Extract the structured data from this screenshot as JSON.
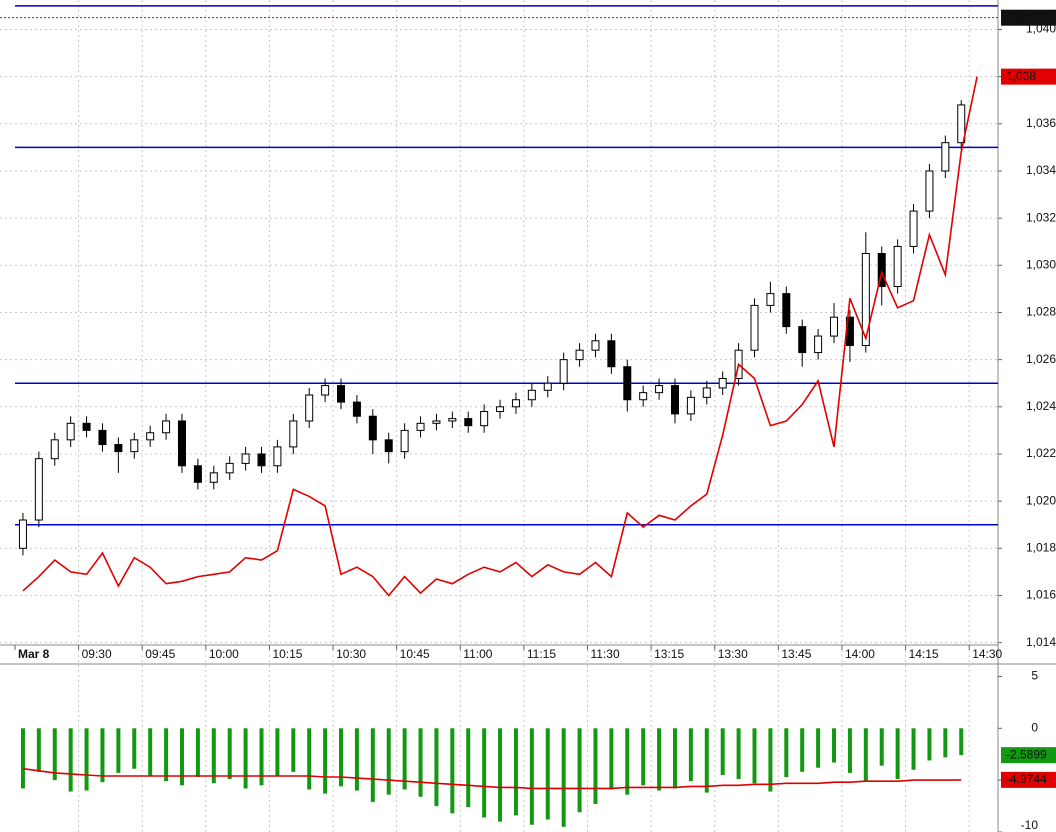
{
  "chart_data": [
    {
      "type": "candlestick",
      "xlim": [
        0,
        62
      ],
      "xticks": [
        {
          "value": 0,
          "label": "Mar 8"
        },
        {
          "value": 4,
          "label": "09:30"
        },
        {
          "value": 8,
          "label": "09:45"
        },
        {
          "value": 12,
          "label": "10:00"
        },
        {
          "value": 16,
          "label": "10:15"
        },
        {
          "value": 20,
          "label": "10:30"
        },
        {
          "value": 24,
          "label": "10:45"
        },
        {
          "value": 28,
          "label": "11:00"
        },
        {
          "value": 32,
          "label": "11:15"
        },
        {
          "value": 36,
          "label": "11:30"
        },
        {
          "value": 40,
          "label": "13:15"
        },
        {
          "value": 44,
          "label": "13:30"
        },
        {
          "value": 48,
          "label": "13:45"
        },
        {
          "value": 52,
          "label": "14:00"
        },
        {
          "value": 56,
          "label": "14:15"
        },
        {
          "value": 60,
          "label": "14:30"
        }
      ],
      "ylim": [
        1013.9,
        1041.25
      ],
      "yticks": [
        {
          "value": 1014,
          "label": "1,014"
        },
        {
          "value": 1016,
          "label": "1,016"
        },
        {
          "value": 1018,
          "label": "1,018"
        },
        {
          "value": 1020,
          "label": "1,020"
        },
        {
          "value": 1022,
          "label": "1,022"
        },
        {
          "value": 1024,
          "label": "1,024"
        },
        {
          "value": 1026,
          "label": "1,026"
        },
        {
          "value": 1028,
          "label": "1,028"
        },
        {
          "value": 1030,
          "label": "1,030"
        },
        {
          "value": 1032,
          "label": "1,032"
        },
        {
          "value": 1034,
          "label": "1,034"
        },
        {
          "value": 1036,
          "label": "1,036"
        },
        {
          "value": 1038,
          "label": "1,038"
        },
        {
          "value": 1040,
          "label": "1,040"
        }
      ],
      "grid": true,
      "open": [
        1018.0,
        1019.2,
        1021.8,
        1022.6,
        1023.3,
        1023.0,
        1022.4,
        1022.1,
        1022.6,
        1022.9,
        1023.4,
        1021.5,
        1020.8,
        1021.2,
        1021.6,
        1022.0,
        1021.5,
        1022.3,
        1023.4,
        1024.5,
        1024.9,
        1024.2,
        1023.6,
        1022.6,
        1022.1,
        1023.0,
        1023.3,
        1023.4,
        1023.5,
        1023.2,
        1023.8,
        1024.0,
        1024.3,
        1024.7,
        1025.0,
        1026.0,
        1026.4,
        1026.8,
        1025.7,
        1024.3,
        1024.6,
        1024.9,
        1023.7,
        1024.4,
        1024.8,
        1025.2,
        1026.4,
        1028.3,
        1028.8,
        1027.4,
        1026.3,
        1027.0,
        1027.8,
        1026.6,
        1030.5,
        1029.1,
        1030.8,
        1032.3,
        1034.0,
        1035.2
      ],
      "high": [
        1019.5,
        1022.1,
        1022.9,
        1023.6,
        1023.6,
        1023.3,
        1022.7,
        1022.9,
        1023.2,
        1023.7,
        1023.7,
        1021.8,
        1021.5,
        1021.9,
        1022.3,
        1022.3,
        1022.6,
        1023.7,
        1024.8,
        1025.2,
        1025.2,
        1024.5,
        1023.9,
        1022.9,
        1023.3,
        1023.6,
        1023.7,
        1023.8,
        1023.8,
        1024.1,
        1024.3,
        1024.6,
        1025.0,
        1025.3,
        1026.3,
        1026.7,
        1027.1,
        1027.1,
        1026.0,
        1024.9,
        1025.2,
        1025.2,
        1024.7,
        1025.1,
        1025.5,
        1026.7,
        1028.6,
        1029.3,
        1029.1,
        1027.7,
        1027.3,
        1028.4,
        1028.1,
        1031.4,
        1030.8,
        1031.1,
        1032.6,
        1034.3,
        1035.5,
        1037.0
      ],
      "low": [
        1017.7,
        1018.9,
        1021.5,
        1022.3,
        1022.7,
        1022.1,
        1021.2,
        1021.8,
        1022.3,
        1022.6,
        1021.2,
        1020.5,
        1020.5,
        1020.9,
        1021.3,
        1021.2,
        1021.2,
        1022.0,
        1023.1,
        1024.2,
        1023.9,
        1023.3,
        1022.0,
        1021.6,
        1021.8,
        1022.7,
        1023.0,
        1023.1,
        1022.9,
        1022.9,
        1023.5,
        1023.7,
        1024.0,
        1024.4,
        1024.7,
        1025.7,
        1026.1,
        1025.4,
        1023.8,
        1024.0,
        1024.3,
        1023.3,
        1023.4,
        1024.1,
        1024.5,
        1024.9,
        1026.1,
        1028.0,
        1027.1,
        1025.7,
        1026.0,
        1026.7,
        1025.9,
        1026.3,
        1028.3,
        1028.8,
        1030.5,
        1032.0,
        1033.7,
        1034.9
      ],
      "close": [
        1019.2,
        1021.8,
        1022.6,
        1023.3,
        1023.0,
        1022.4,
        1022.1,
        1022.6,
        1022.9,
        1023.4,
        1021.5,
        1020.8,
        1021.2,
        1021.6,
        1022.0,
        1021.5,
        1022.3,
        1023.4,
        1024.5,
        1024.9,
        1024.2,
        1023.6,
        1022.6,
        1022.1,
        1023.0,
        1023.3,
        1023.4,
        1023.5,
        1023.2,
        1023.8,
        1024.0,
        1024.3,
        1024.7,
        1025.0,
        1026.0,
        1026.4,
        1026.8,
        1025.7,
        1024.3,
        1024.6,
        1024.9,
        1023.7,
        1024.4,
        1024.8,
        1025.2,
        1026.4,
        1028.3,
        1028.8,
        1027.4,
        1026.3,
        1027.0,
        1027.8,
        1026.6,
        1030.5,
        1029.1,
        1030.8,
        1032.3,
        1034.0,
        1035.2,
        1036.8
      ],
      "line": {
        "color": "#e00000",
        "last_label": "1,038",
        "values": [
          1016.2,
          1016.8,
          1017.5,
          1017.0,
          1016.9,
          1017.8,
          1016.4,
          1017.6,
          1017.2,
          1016.5,
          1016.6,
          1016.8,
          1016.9,
          1017.0,
          1017.6,
          1017.5,
          1017.9,
          1020.5,
          1020.2,
          1019.8,
          1016.9,
          1017.2,
          1016.8,
          1016.0,
          1016.8,
          1016.1,
          1016.7,
          1016.5,
          1016.9,
          1017.2,
          1017.0,
          1017.4,
          1016.8,
          1017.3,
          1017.0,
          1016.9,
          1017.4,
          1016.8,
          1019.5,
          1018.9,
          1019.4,
          1019.2,
          1019.8,
          1020.3,
          1022.8,
          1025.8,
          1025.2,
          1023.2,
          1023.4,
          1024.1,
          1025.1,
          1022.3,
          1028.6,
          1026.9,
          1029.7,
          1028.2,
          1028.5,
          1031.3,
          1029.6,
          1034.8,
          1038.0
        ]
      },
      "levels": {
        "color": "#0000cc",
        "values": [
          1041.0,
          1035.0,
          1025.0,
          1019.0
        ]
      },
      "marker": {
        "value": 1040.5,
        "label": "1,040.5",
        "color": "#cc0000"
      }
    },
    {
      "type": "bar",
      "xlim": [
        0,
        62
      ],
      "ylim": [
        -10,
        6.2
      ],
      "yticks": [
        5,
        0,
        -5,
        -10
      ],
      "color": "#119911",
      "values": [
        -5.8,
        -4.2,
        -5.0,
        -6.1,
        -6.0,
        -5.2,
        -4.3,
        -3.9,
        -4.6,
        -5.1,
        -5.5,
        -4.7,
        -5.3,
        -4.9,
        -5.8,
        -5.5,
        -4.6,
        -4.2,
        -5.9,
        -6.3,
        -5.6,
        -6.0,
        -7.1,
        -6.4,
        -5.9,
        -6.6,
        -7.5,
        -8.2,
        -7.6,
        -8.6,
        -9.0,
        -8.4,
        -9.3,
        -8.8,
        -9.5,
        -8.1,
        -7.3,
        -5.9,
        -6.4,
        -5.5,
        -6.0,
        -5.8,
        -5.1,
        -6.2,
        -4.5,
        -4.9,
        -5.3,
        -6.1,
        -4.7,
        -4.2,
        -3.8,
        -3.3,
        -4.3,
        -5.1,
        -3.6,
        -4.9,
        -4.0,
        -3.1,
        -2.8,
        -2.5899
      ],
      "last_label": "-2.5899",
      "signal": {
        "color": "#e00000",
        "last_label": "-4.9744",
        "values": [
          -3.9,
          -4.1,
          -4.3,
          -4.4,
          -4.5,
          -4.6,
          -4.6,
          -4.6,
          -4.6,
          -4.6,
          -4.6,
          -4.6,
          -4.6,
          -4.6,
          -4.6,
          -4.6,
          -4.6,
          -4.6,
          -4.6,
          -4.7,
          -4.7,
          -4.8,
          -4.9,
          -5.0,
          -5.1,
          -5.2,
          -5.3,
          -5.4,
          -5.5,
          -5.6,
          -5.7,
          -5.7,
          -5.8,
          -5.8,
          -5.8,
          -5.8,
          -5.8,
          -5.8,
          -5.7,
          -5.7,
          -5.7,
          -5.7,
          -5.6,
          -5.6,
          -5.5,
          -5.5,
          -5.4,
          -5.4,
          -5.3,
          -5.3,
          -5.3,
          -5.2,
          -5.2,
          -5.1,
          -5.1,
          -5.1,
          -5.0,
          -5.0,
          -5.0,
          -4.9744
        ]
      }
    }
  ]
}
